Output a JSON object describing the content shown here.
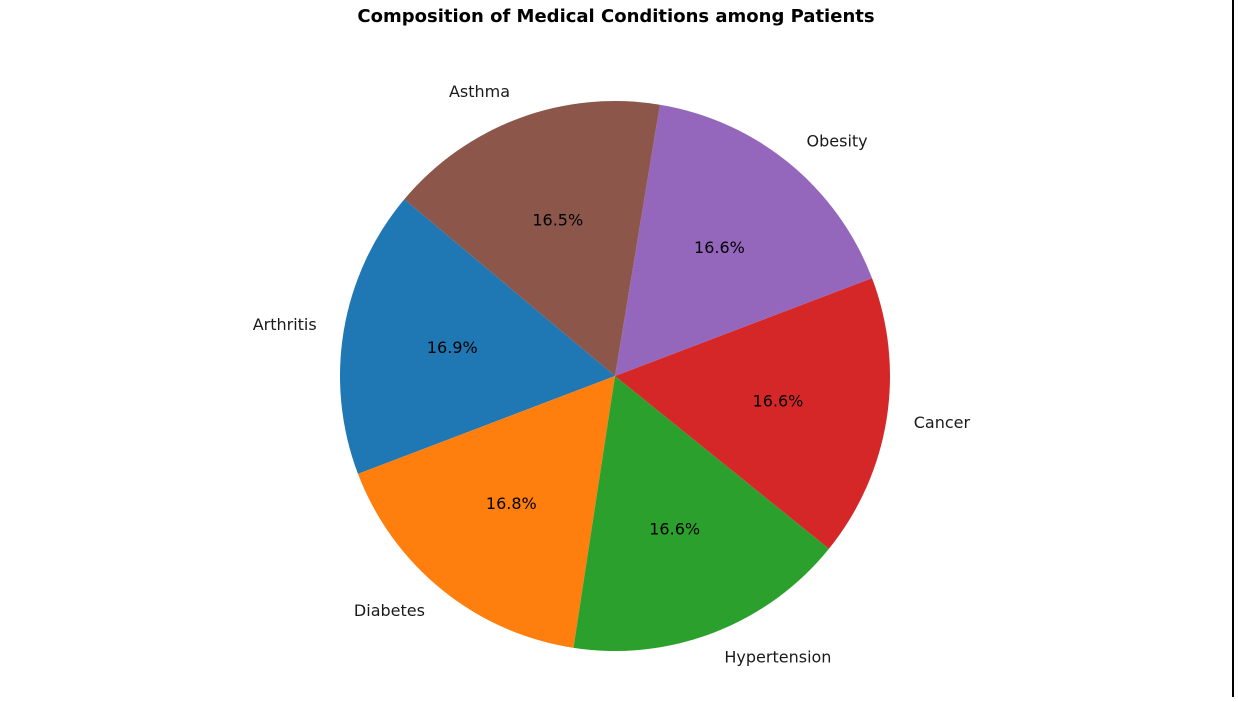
{
  "chart_data": {
    "type": "pie",
    "title": "Composition of Medical Conditions among Patients",
    "slices": [
      {
        "label": "Arthritis",
        "value": 16.9,
        "pct_label": "16.9%",
        "color": "#1f77b4"
      },
      {
        "label": "Diabetes",
        "value": 16.8,
        "pct_label": "16.8%",
        "color": "#ff7f0e"
      },
      {
        "label": "Hypertension",
        "value": 16.6,
        "pct_label": "16.6%",
        "color": "#2ca02c"
      },
      {
        "label": "Cancer",
        "value": 16.6,
        "pct_label": "16.6%",
        "color": "#d62728"
      },
      {
        "label": "Obesity",
        "value": 16.6,
        "pct_label": "16.6%",
        "color": "#9467bd"
      },
      {
        "label": "Asthma",
        "value": 16.5,
        "pct_label": "16.5%",
        "color": "#8c564b"
      }
    ],
    "start_angle_deg": 140,
    "direction": "counterclockwise"
  }
}
